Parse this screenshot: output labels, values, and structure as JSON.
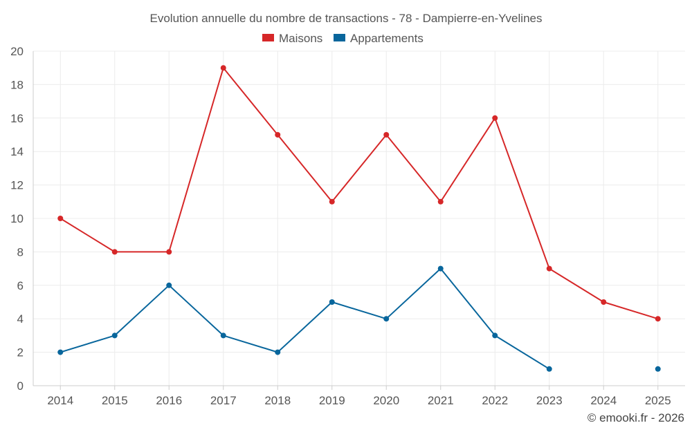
{
  "chart_data": {
    "type": "line",
    "title": "Evolution annuelle du nombre de transactions - 78 - Dampierre-en-Yvelines",
    "categories": [
      "2014",
      "2015",
      "2016",
      "2017",
      "2018",
      "2019",
      "2020",
      "2021",
      "2022",
      "2023",
      "2024",
      "2025"
    ],
    "series": [
      {
        "name": "Maisons",
        "color": "#d62728",
        "values": [
          10,
          8,
          8,
          19,
          15,
          11,
          15,
          11,
          16,
          7,
          5,
          4
        ]
      },
      {
        "name": "Appartements",
        "color": "#08669c",
        "values": [
          2,
          3,
          6,
          3,
          2,
          5,
          4,
          7,
          3,
          1,
          null,
          1
        ]
      }
    ],
    "ylim": [
      0,
      20
    ],
    "yticks": [
      0,
      2,
      4,
      6,
      8,
      10,
      12,
      14,
      16,
      18,
      20
    ],
    "grid": true,
    "legend_position": "top-center",
    "xlabel": "",
    "ylabel": ""
  },
  "credit": "© emooki.fr - 2026"
}
